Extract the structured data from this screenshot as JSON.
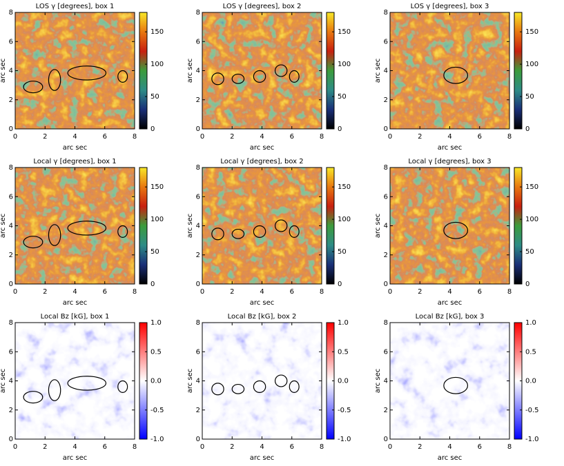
{
  "chart_data": [
    {
      "type": "heatmap",
      "title": "LOS γ [degrees], box 1",
      "xlabel": "arc sec",
      "ylabel": "arc sec",
      "xlim": [
        0,
        8
      ],
      "xticks": [
        0,
        2,
        4,
        6,
        8
      ],
      "ylim": [
        0,
        8
      ],
      "yticks": [
        0,
        2,
        4,
        6,
        8
      ],
      "clim": [
        0,
        180
      ],
      "cticks": [
        0,
        50,
        100,
        150
      ],
      "colors": [
        "#000000",
        "#1a2f78",
        "#2e8c86",
        "#3c9c3c",
        "#c82010",
        "#e87810",
        "#f8e828"
      ]
    },
    {
      "type": "heatmap",
      "title": "LOS γ [degrees], box 2",
      "xlabel": "arc sec",
      "ylabel": "arc sec",
      "xlim": [
        0,
        8
      ],
      "xticks": [
        0,
        2,
        4,
        6,
        8
      ],
      "ylim": [
        0,
        8
      ],
      "yticks": [
        0,
        2,
        4,
        6,
        8
      ],
      "clim": [
        0,
        180
      ],
      "cticks": [
        0,
        50,
        100,
        150
      ],
      "colors": [
        "#000000",
        "#1a2f78",
        "#2e8c86",
        "#3c9c3c",
        "#c82010",
        "#e87810",
        "#f8e828"
      ]
    },
    {
      "type": "heatmap",
      "title": "LOS γ [degrees], box 3",
      "xlabel": "arc sec",
      "ylabel": "arc sec",
      "xlim": [
        0,
        8
      ],
      "xticks": [
        0,
        2,
        4,
        6,
        8
      ],
      "ylim": [
        0,
        8
      ],
      "yticks": [
        0,
        2,
        4,
        6,
        8
      ],
      "clim": [
        0,
        180
      ],
      "cticks": [
        0,
        50,
        100,
        150
      ],
      "colors": [
        "#000000",
        "#1a2f78",
        "#2e8c86",
        "#3c9c3c",
        "#c82010",
        "#e87810",
        "#f8e828"
      ]
    },
    {
      "type": "heatmap",
      "title": "Local γ [degrees], box 1",
      "xlabel": "arc sec",
      "ylabel": "arc sec",
      "xlim": [
        0,
        8
      ],
      "xticks": [
        0,
        2,
        4,
        6,
        8
      ],
      "ylim": [
        0,
        8
      ],
      "yticks": [
        0,
        2,
        4,
        6,
        8
      ],
      "clim": [
        0,
        180
      ],
      "cticks": [
        0,
        50,
        100,
        150
      ],
      "colors": [
        "#000000",
        "#1a2f78",
        "#2e8c86",
        "#3c9c3c",
        "#c82010",
        "#e87810",
        "#f8e828"
      ]
    },
    {
      "type": "heatmap",
      "title": "Local γ [degrees], box 2",
      "xlabel": "arc sec",
      "ylabel": "arc sec",
      "xlim": [
        0,
        8
      ],
      "xticks": [
        0,
        2,
        4,
        6,
        8
      ],
      "ylim": [
        0,
        8
      ],
      "yticks": [
        0,
        2,
        4,
        6,
        8
      ],
      "clim": [
        0,
        180
      ],
      "cticks": [
        0,
        50,
        100,
        150
      ],
      "colors": [
        "#000000",
        "#1a2f78",
        "#2e8c86",
        "#3c9c3c",
        "#c82010",
        "#e87810",
        "#f8e828"
      ]
    },
    {
      "type": "heatmap",
      "title": "Local γ [degrees], box 3",
      "xlabel": "arc sec",
      "ylabel": "arc sec",
      "xlim": [
        0,
        8
      ],
      "xticks": [
        0,
        2,
        4,
        6,
        8
      ],
      "ylim": [
        0,
        8
      ],
      "yticks": [
        0,
        2,
        4,
        6,
        8
      ],
      "clim": [
        0,
        180
      ],
      "cticks": [
        0,
        50,
        100,
        150
      ],
      "colors": [
        "#000000",
        "#1a2f78",
        "#2e8c86",
        "#3c9c3c",
        "#c82010",
        "#e87810",
        "#f8e828"
      ]
    },
    {
      "type": "heatmap",
      "title": "Local Bz [kG], box 1",
      "xlabel": "arc sec",
      "ylabel": "arc sec",
      "xlim": [
        0,
        8
      ],
      "xticks": [
        0,
        2,
        4,
        6,
        8
      ],
      "ylim": [
        0,
        8
      ],
      "yticks": [
        0,
        2,
        4,
        6,
        8
      ],
      "clim": [
        -1,
        1
      ],
      "cticks": [
        {
          "value": -1,
          "label": "-1.0"
        },
        -0.5,
        {
          "value": 0,
          "label": "0.0"
        },
        0.5,
        {
          "value": 1,
          "label": "1.0"
        }
      ],
      "colors": [
        "#0000ff",
        "#ffffff",
        "#ff0000"
      ]
    },
    {
      "type": "heatmap",
      "title": "Local Bz [kG], box 2",
      "xlabel": "arc sec",
      "ylabel": "arc sec",
      "xlim": [
        0,
        8
      ],
      "xticks": [
        0,
        2,
        4,
        6,
        8
      ],
      "ylim": [
        0,
        8
      ],
      "yticks": [
        0,
        2,
        4,
        6,
        8
      ],
      "clim": [
        -1,
        1
      ],
      "cticks": [
        {
          "value": -1,
          "label": "-1.0"
        },
        -0.5,
        {
          "value": 0,
          "label": "0.0"
        },
        0.5,
        {
          "value": 1,
          "label": "1.0"
        }
      ],
      "colors": [
        "#0000ff",
        "#ffffff",
        "#ff0000"
      ]
    },
    {
      "type": "heatmap",
      "title": "Local Bz [kG], box 3",
      "xlabel": "arc sec",
      "ylabel": "arc sec",
      "xlim": [
        0,
        8
      ],
      "xticks": [
        0,
        2,
        4,
        6,
        8
      ],
      "ylim": [
        0,
        8
      ],
      "yticks": [
        0,
        2,
        4,
        6,
        8
      ],
      "clim": [
        -1,
        1
      ],
      "cticks": [
        {
          "value": -1,
          "label": "-1.0"
        },
        -0.5,
        {
          "value": 0,
          "label": "0.0"
        },
        0.5,
        {
          "value": 1,
          "label": "1.0"
        }
      ],
      "colors": [
        "#0000ff",
        "#ffffff",
        "#ff0000"
      ]
    }
  ]
}
